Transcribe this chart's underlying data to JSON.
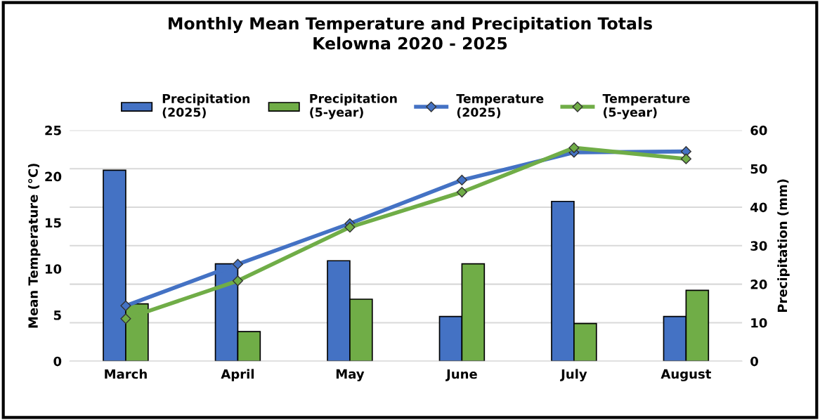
{
  "chart_data": {
    "type": "bar",
    "title": "Monthly Mean Temperature and Precipitation Totals\nKelowna 2020 - 2025",
    "ylabel": "Mean Temperature (°C)",
    "y2label": "Precipitation (mm)",
    "categories": [
      "March",
      "April",
      "May",
      "June",
      "July",
      "August"
    ],
    "series": [
      {
        "name": "Precipitation\n(2025)",
        "color": "#4472c4",
        "axis": "y2",
        "values": [
          49.6,
          25.3,
          26.1,
          11.6,
          41.5,
          11.6
        ]
      },
      {
        "name": "Precipitation\n(5-year)",
        "color": "#70ad47",
        "axis": "y2",
        "values": [
          14.9,
          7.7,
          16.1,
          25.3,
          9.8,
          18.4
        ]
      },
      {
        "name": "Temperature\n(2025)",
        "color": "#4472c4",
        "type": "line",
        "values": [
          6.0,
          10.5,
          14.9,
          19.6,
          22.6,
          22.7
        ]
      },
      {
        "name": "Temperature\n(5-year)",
        "color": "#70ad47",
        "type": "line",
        "values": [
          4.6,
          8.7,
          14.5,
          18.3,
          23.1,
          21.9
        ]
      }
    ],
    "ylim": [
      0,
      25
    ],
    "yticks": [
      0,
      5,
      10,
      15,
      20,
      25
    ],
    "y2lim": [
      0,
      60
    ],
    "y2ticks": [
      0,
      10,
      20,
      30,
      40,
      50,
      60
    ],
    "grid": "y",
    "legend": "top",
    "marker": "diamond"
  }
}
